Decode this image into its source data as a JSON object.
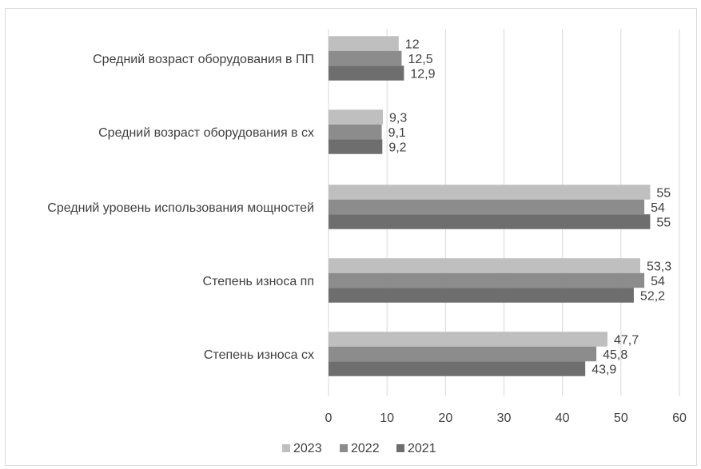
{
  "chart_data": {
    "type": "bar",
    "orientation": "horizontal",
    "categories": [
      "Средний возраст оборудования в ПП",
      "Средний возраст оборудования в сх",
      "Средний уровень использования мощностей",
      "Степень износа пп",
      "Степень износа сх"
    ],
    "series": [
      {
        "name": "2023",
        "color": "#bfbfbf",
        "values": [
          12,
          9.3,
          55,
          53.3,
          47.7
        ],
        "labels": [
          "12",
          "9,3",
          "55",
          "53,3",
          "47,7"
        ]
      },
      {
        "name": "2022",
        "color": "#8c8c8c",
        "values": [
          12.5,
          9.1,
          54,
          54,
          45.8
        ],
        "labels": [
          "12,5",
          "9,1",
          "54",
          "54",
          "45,8"
        ]
      },
      {
        "name": "2021",
        "color": "#6e6e6e",
        "values": [
          12.9,
          9.2,
          55,
          52.2,
          43.9
        ],
        "labels": [
          "12,9",
          "9,2",
          "55",
          "52,2",
          "43,9"
        ]
      }
    ],
    "xlim": [
      0,
      60
    ],
    "xticks": [
      "0",
      "10",
      "20",
      "30",
      "40",
      "50",
      "60"
    ],
    "grid": "vertical",
    "legend_position": "bottom"
  }
}
